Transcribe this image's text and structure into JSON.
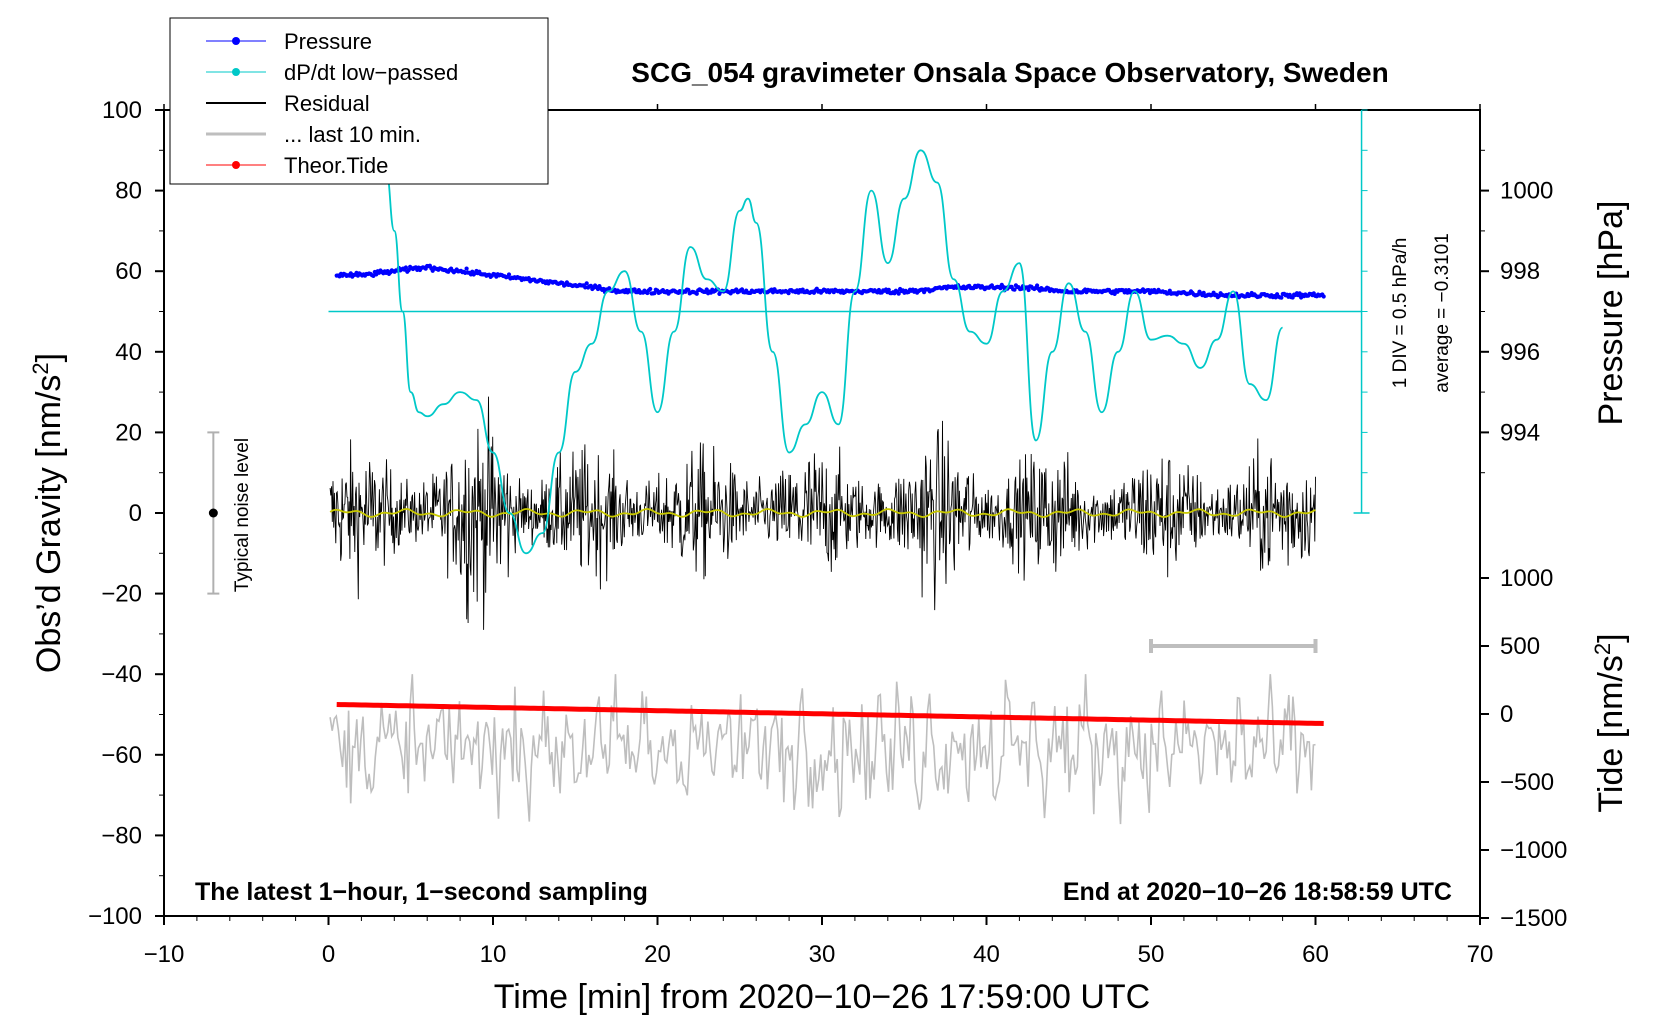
{
  "chart_data": {
    "type": "line",
    "title": "SCG_054 gravimeter Onsala Space Observatory, Sweden",
    "xlabel": "Time [min] from 2020−10−26 17:59:00 UTC",
    "ylabel_left": "Obs’d Gravity [nm/s",
    "ylabel_left_sup": "2",
    "ylabel_left_close": "]",
    "ylabel_right_pressure": "Pressure [hPa]",
    "ylabel_right_tide": "Tide [nm/s",
    "ylabel_right_tide_sup": "2",
    "ylabel_right_tide_close": "]",
    "xlim": [
      -10,
      70
    ],
    "ylim": [
      -100,
      100
    ],
    "pressure_axis": {
      "ticks": [
        994,
        996,
        998,
        1000
      ],
      "tick_labels": [
        "994",
        "996",
        "998",
        "1000"
      ],
      "range": [
        992,
        1002
      ]
    },
    "tide_axis": {
      "ticks": [
        -1500,
        -1000,
        -500,
        0,
        500,
        1000
      ],
      "tick_labels": [
        "−1500",
        "−1000",
        "−500",
        "0",
        "500",
        "1000"
      ]
    },
    "x_ticks": [
      -10,
      0,
      10,
      20,
      30,
      40,
      50,
      60,
      70
    ],
    "x_tick_labels": [
      "−10",
      "0",
      "10",
      "20",
      "30",
      "40",
      "50",
      "60",
      "70"
    ],
    "y_ticks": [
      -100,
      -80,
      -60,
      -40,
      -20,
      0,
      20,
      40,
      60,
      80,
      100
    ],
    "y_tick_labels": [
      "−100",
      "−80",
      "−60",
      "−40",
      "−20",
      "0",
      "20",
      "40",
      "60",
      "80",
      "100"
    ],
    "legend": [
      {
        "label": "Pressure",
        "color": "#0000ff",
        "marker": "dot"
      },
      {
        "label": "dP/dt low−passed",
        "color": "#00c8c8",
        "marker": "dot"
      },
      {
        "label": "Residual",
        "color": "#000000",
        "marker": "line"
      },
      {
        "label": "... last 10 min.",
        "color": "#bebebe",
        "marker": "line"
      },
      {
        "label": "Theor.Tide",
        "color": "#ff0000",
        "marker": "dot"
      }
    ],
    "annotations": {
      "noise_level": "Typical noise level",
      "dpdt_scale": "1 DIV = 0.5 hPa/h",
      "dpdt_average": "average = −0.3101",
      "footer_left": "The latest 1−hour, 1−second sampling",
      "footer_right": "End at 2020−10−26 18:58:59 UTC"
    },
    "noise_bar": {
      "x": -7,
      "center": 0,
      "low": -20,
      "high": 20
    },
    "ten_min_marker": {
      "start": 50,
      "end": 60,
      "y_tide": 500
    },
    "series": [
      {
        "name": "Pressure",
        "axis": "pressure",
        "x": [
          0.5,
          2,
          4,
          6,
          8,
          10,
          12,
          14,
          16,
          18,
          20,
          22,
          25,
          28,
          32,
          35,
          38,
          42,
          45,
          50,
          55,
          60
        ],
        "values": [
          997.9,
          997.9,
          998.0,
          998.1,
          998.0,
          997.9,
          997.8,
          997.7,
          997.6,
          997.5,
          997.5,
          997.5,
          997.5,
          997.5,
          997.5,
          997.5,
          997.6,
          997.6,
          997.5,
          997.5,
          997.4,
          997.4
        ]
      },
      {
        "name": "dP/dt low-passed",
        "axis": "gravity",
        "x": [
          3.5,
          4,
          4.5,
          5,
          5.5,
          6,
          7,
          8,
          9,
          10,
          11,
          12,
          13,
          14,
          15,
          16,
          17,
          18,
          19,
          20,
          21,
          22,
          23,
          24,
          25,
          25.5,
          26,
          27,
          28,
          29,
          30,
          31,
          32,
          33,
          34,
          35,
          36,
          37,
          38,
          39,
          40,
          41,
          42,
          43,
          44,
          45,
          46,
          47,
          48,
          49,
          50,
          51,
          52,
          53,
          54,
          55,
          56,
          57,
          58
        ],
        "values": [
          85,
          70,
          50,
          30,
          25,
          24,
          27,
          30,
          28,
          15,
          0,
          -10,
          -5,
          15,
          35,
          42,
          55,
          60,
          45,
          25,
          45,
          66,
          58,
          55,
          75,
          78,
          72,
          40,
          15,
          22,
          30,
          22,
          55,
          80,
          62,
          78,
          90,
          82,
          58,
          45,
          42,
          55,
          62,
          18,
          40,
          57,
          45,
          25,
          40,
          55,
          43,
          44,
          42,
          36,
          43,
          55,
          32,
          28,
          46
        ]
      },
      {
        "name": "Theor.Tide",
        "axis": "tide",
        "x": [
          0.5,
          60.5
        ],
        "values": [
          70,
          -70
        ]
      }
    ]
  }
}
